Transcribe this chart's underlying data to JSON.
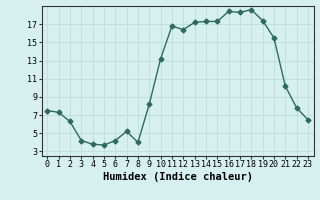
{
  "xlabel": "Humidex (Indice chaleur)",
  "ylabel": "",
  "x": [
    0,
    1,
    2,
    3,
    4,
    5,
    6,
    7,
    8,
    9,
    10,
    11,
    12,
    13,
    14,
    15,
    16,
    17,
    18,
    19,
    20,
    21,
    22,
    23
  ],
  "y": [
    7.5,
    7.3,
    6.3,
    4.2,
    3.8,
    3.7,
    4.2,
    5.2,
    4.0,
    8.2,
    13.2,
    16.8,
    16.4,
    17.2,
    17.3,
    17.3,
    18.4,
    18.3,
    18.6,
    17.4,
    15.5,
    10.2,
    7.8,
    6.5
  ],
  "line_color": "#2e6b5e",
  "marker": "D",
  "marker_size": 2.5,
  "line_width": 1.0,
  "bg_color": "#d6f0ef",
  "grid_color": "#c0dedd",
  "tick_color": "#333333",
  "xlim": [
    -0.5,
    23.5
  ],
  "ylim": [
    2.5,
    19.0
  ],
  "yticks": [
    3,
    5,
    7,
    9,
    11,
    13,
    15,
    17
  ],
  "xticks": [
    0,
    1,
    2,
    3,
    4,
    5,
    6,
    7,
    8,
    9,
    10,
    11,
    12,
    13,
    14,
    15,
    16,
    17,
    18,
    19,
    20,
    21,
    22,
    23
  ],
  "font_family": "monospace",
  "xlabel_fontsize": 7.5,
  "tick_fontsize": 6.0
}
